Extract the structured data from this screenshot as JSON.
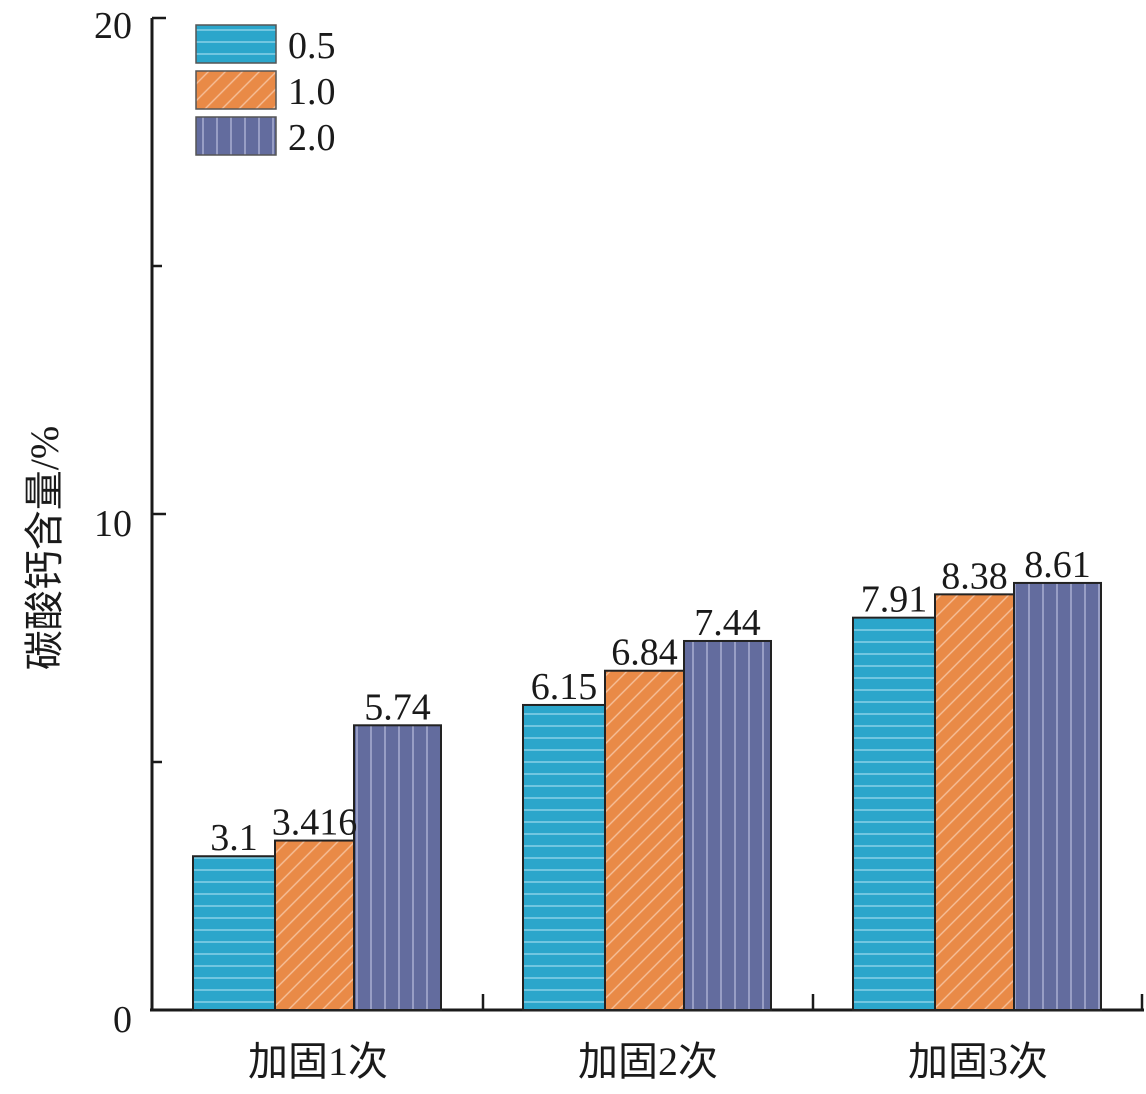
{
  "chart_data": {
    "type": "bar",
    "title": "",
    "xlabel": "",
    "ylabel": "碳酸钙含量/%",
    "ylim": [
      0,
      20
    ],
    "yticks": [
      "0",
      "10",
      "20"
    ],
    "categories": [
      "加固1次",
      "加固2次",
      "加固3次"
    ],
    "series": [
      {
        "name": "0.5",
        "values": [
          3.1,
          6.15,
          7.91
        ],
        "labels": [
          "3.1",
          "6.15",
          "7.91"
        ],
        "color": "#2BA6CB",
        "pattern": "horizontal-lines"
      },
      {
        "name": "1.0",
        "values": [
          3.416,
          6.84,
          8.38
        ],
        "labels": [
          "3.416",
          "6.84",
          "8.38"
        ],
        "color": "#E98A47",
        "pattern": "diagonal-lines"
      },
      {
        "name": "2.0",
        "values": [
          5.74,
          7.44,
          8.61
        ],
        "labels": [
          "5.74",
          "7.44",
          "8.61"
        ],
        "color": "#636C9E",
        "pattern": "vertical-lines"
      }
    ],
    "legend_position": "top-left",
    "grid": false
  }
}
